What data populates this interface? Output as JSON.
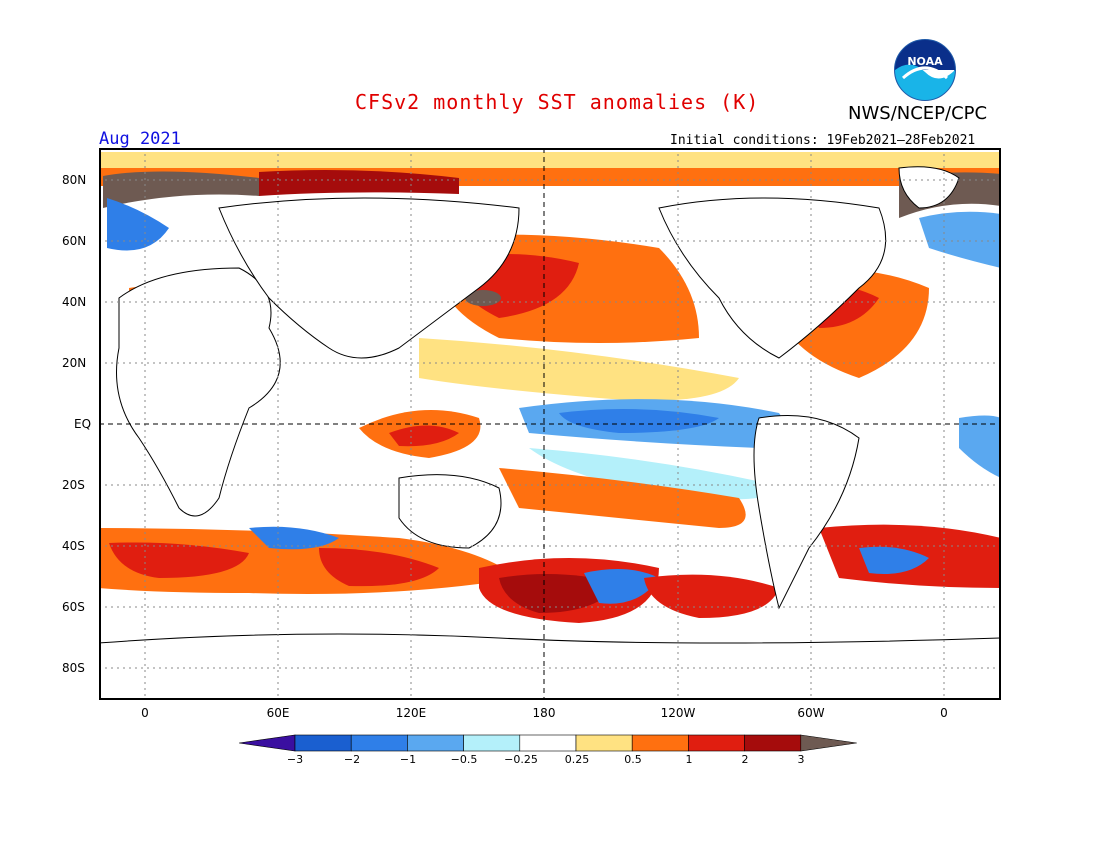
{
  "header": {
    "title": "CFSv2 monthly SST anomalies (K)",
    "agency": "NWS/NCEP/CPC",
    "valid_month": "Aug 2021",
    "initial_conditions": "Initial conditions: 19Feb2021–28Feb2021",
    "logo_text": "NOAA"
  },
  "map": {
    "lat_labels": [
      "80N",
      "60N",
      "40N",
      "20N",
      "EQ",
      "20S",
      "40S",
      "60S",
      "80S"
    ],
    "lon_labels": [
      "0",
      "60E",
      "120E",
      "180",
      "120W",
      "60W",
      "0"
    ]
  },
  "colorbar": {
    "labels": [
      "−3",
      "−2",
      "−1",
      "−0.5",
      "−0.25",
      "0.25",
      "0.5",
      "1",
      "2",
      "3"
    ],
    "colors": [
      "#3a0fa0",
      "#1a5fd0",
      "#2f7fe8",
      "#5aa8f0",
      "#b4f0fa",
      "#ffffff",
      "#ffe282",
      "#ff7010",
      "#e01e10",
      "#a50c0c",
      "#6e5a52"
    ]
  }
}
